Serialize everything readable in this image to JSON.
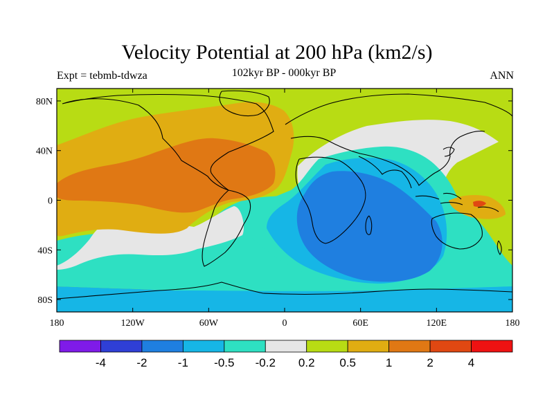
{
  "title": "Velocity Potential at 200 hPa (km2/s)",
  "left_string": "Expt = tebmb-tdwza",
  "center_string": "102kyr BP - 000kyr BP",
  "right_string": "ANN",
  "map": {
    "projection": "cylindrical-equidistant",
    "lon_range": [
      -180,
      180
    ],
    "lat_range": [
      -90,
      90
    ],
    "lon_ticks": [
      {
        "value": -180,
        "label": "180"
      },
      {
        "value": -120,
        "label": "120W"
      },
      {
        "value": -60,
        "label": "60W"
      },
      {
        "value": 0,
        "label": "0"
      },
      {
        "value": 60,
        "label": "60E"
      },
      {
        "value": 120,
        "label": "120E"
      },
      {
        "value": 180,
        "label": "180"
      }
    ],
    "lat_ticks": [
      {
        "value": 80,
        "label": "80N"
      },
      {
        "value": 40,
        "label": "40N"
      },
      {
        "value": 0,
        "label": "0"
      },
      {
        "value": -40,
        "label": "40S"
      },
      {
        "value": -80,
        "label": "80S"
      }
    ]
  },
  "colorbar": {
    "colors": [
      "#7f1be8",
      "#2f3fd6",
      "#1f7fe0",
      "#16b6e6",
      "#2ee0c2",
      "#e6e6e6",
      "#b8dc14",
      "#e0ad12",
      "#e07814",
      "#e04812",
      "#ee1212"
    ],
    "labels": [
      "-4",
      "-2",
      "-1",
      "-0.5",
      "-0.2",
      "0.2",
      "0.5",
      "1",
      "2",
      "4"
    ]
  },
  "regions": [
    {
      "name": "background-positive-band",
      "color": "#b8dc14"
    },
    {
      "name": "high-southern-ocean-band",
      "color": "#16b6e6"
    },
    {
      "name": "southern-ocean-teal-band",
      "color": "#2ee0c2"
    },
    {
      "name": "southeast-pacific-neutral-band",
      "color": "#e6e6e6"
    },
    {
      "name": "americas-atlantic-positive-region",
      "color": "#e0ad12"
    },
    {
      "name": "tropical-atlantic-strong-positive-core",
      "color": "#e07814"
    },
    {
      "name": "eurasia-neutral-region",
      "color": "#e6e6e6"
    },
    {
      "name": "indian-ocean-teal-region",
      "color": "#2ee0c2"
    },
    {
      "name": "indian-ocean-light-blue-region",
      "color": "#16b6e6"
    },
    {
      "name": "indian-ocean-negative-core",
      "color": "#1f7fe0"
    },
    {
      "name": "west-pacific-positive-patch",
      "color": "#e0ad12"
    },
    {
      "name": "west-pacific-strong-positive-spot",
      "color": "#e04812"
    }
  ]
}
